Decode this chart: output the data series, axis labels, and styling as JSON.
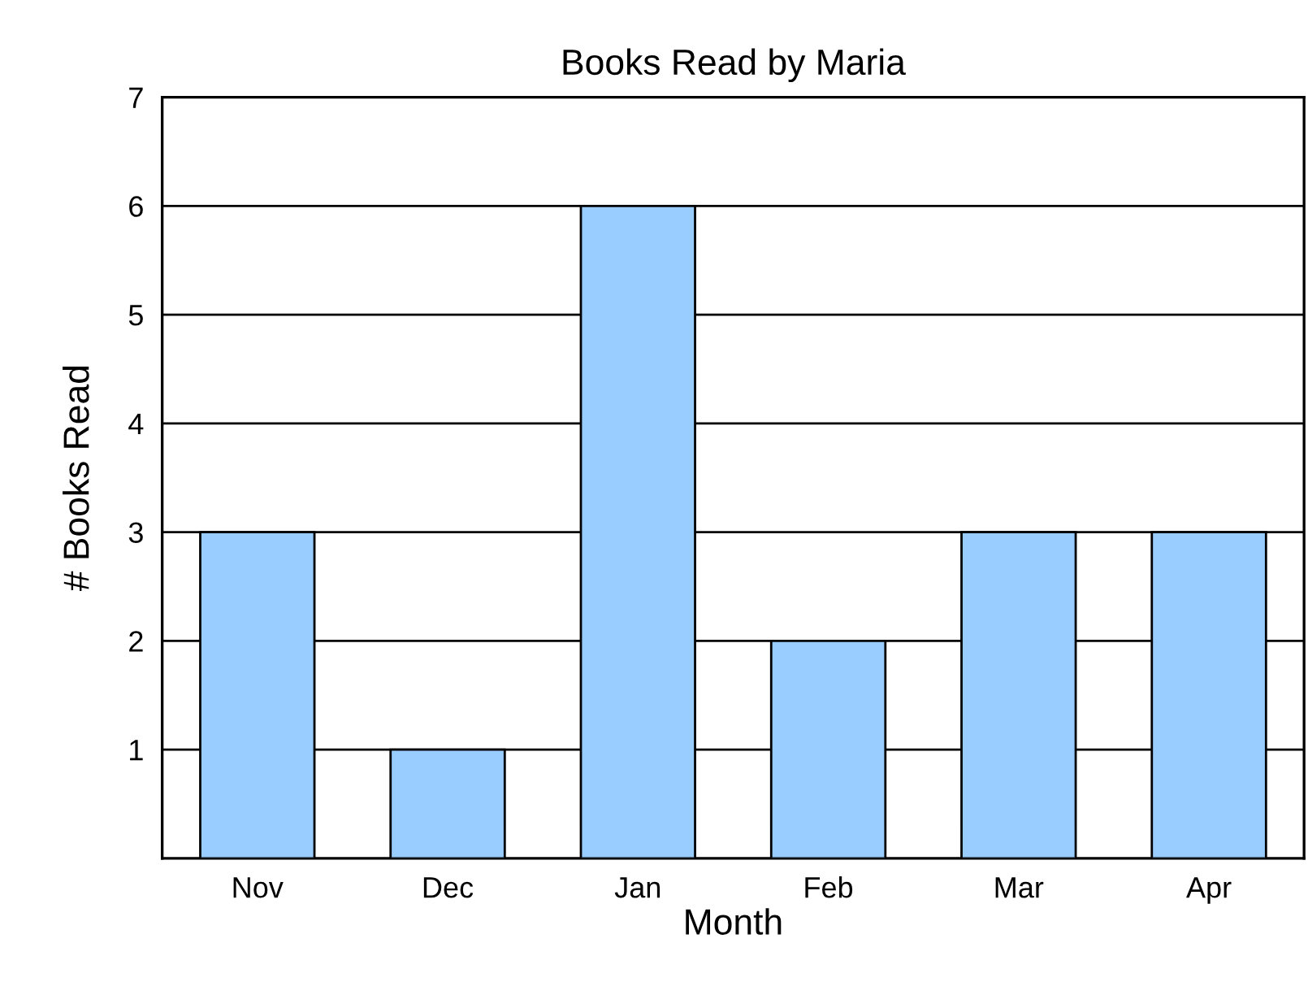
{
  "chart_data": {
    "type": "bar",
    "title": "Books Read by Maria",
    "xlabel": "Month",
    "ylabel": "# Books Read",
    "categories": [
      "Nov",
      "Dec",
      "Jan",
      "Feb",
      "Mar",
      "Apr"
    ],
    "values": [
      3,
      1,
      6,
      2,
      3,
      3
    ],
    "color": "#99ccff",
    "ylim": [
      0,
      7
    ],
    "yticks": [
      1,
      2,
      3,
      4,
      5,
      6,
      7
    ],
    "grid": "y",
    "legend": false
  }
}
